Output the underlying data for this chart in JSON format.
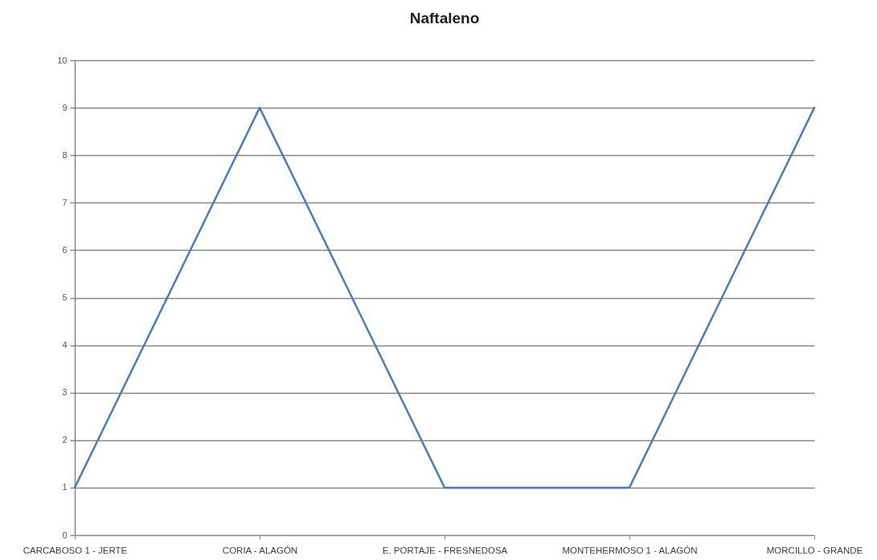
{
  "chart_data": {
    "type": "line",
    "title": "Naftaleno",
    "categories": [
      "CARCABOSO 1 - JERTE",
      "CORIA - ALAGÓN",
      "E. PORTAJE - FRESNEDOSA",
      "MONTEHERMOSO 1 - ALAGÓN",
      "MORCILLO - GRANDE"
    ],
    "values": [
      1,
      9,
      1,
      1,
      9
    ],
    "color": "#4a7ebb",
    "ylim": [
      0,
      10
    ],
    "yticks": [
      0,
      1,
      2,
      3,
      4,
      5,
      6,
      7,
      8,
      9,
      10
    ],
    "grid": "y"
  }
}
